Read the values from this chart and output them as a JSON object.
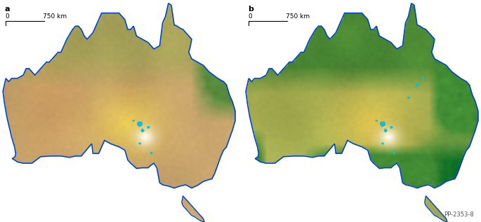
{
  "figure_width": 6.85,
  "figure_height": 3.17,
  "dpi": 100,
  "background_color": "#ffffff",
  "panel_a_label": "a",
  "panel_b_label": "b",
  "scale_bar_label": "750 km",
  "scale_bar_zero": "0",
  "reference_code": "PP-2353-8",
  "label_fontsize": 8,
  "scalebar_fontsize": 6.5,
  "ref_fontsize": 6
}
